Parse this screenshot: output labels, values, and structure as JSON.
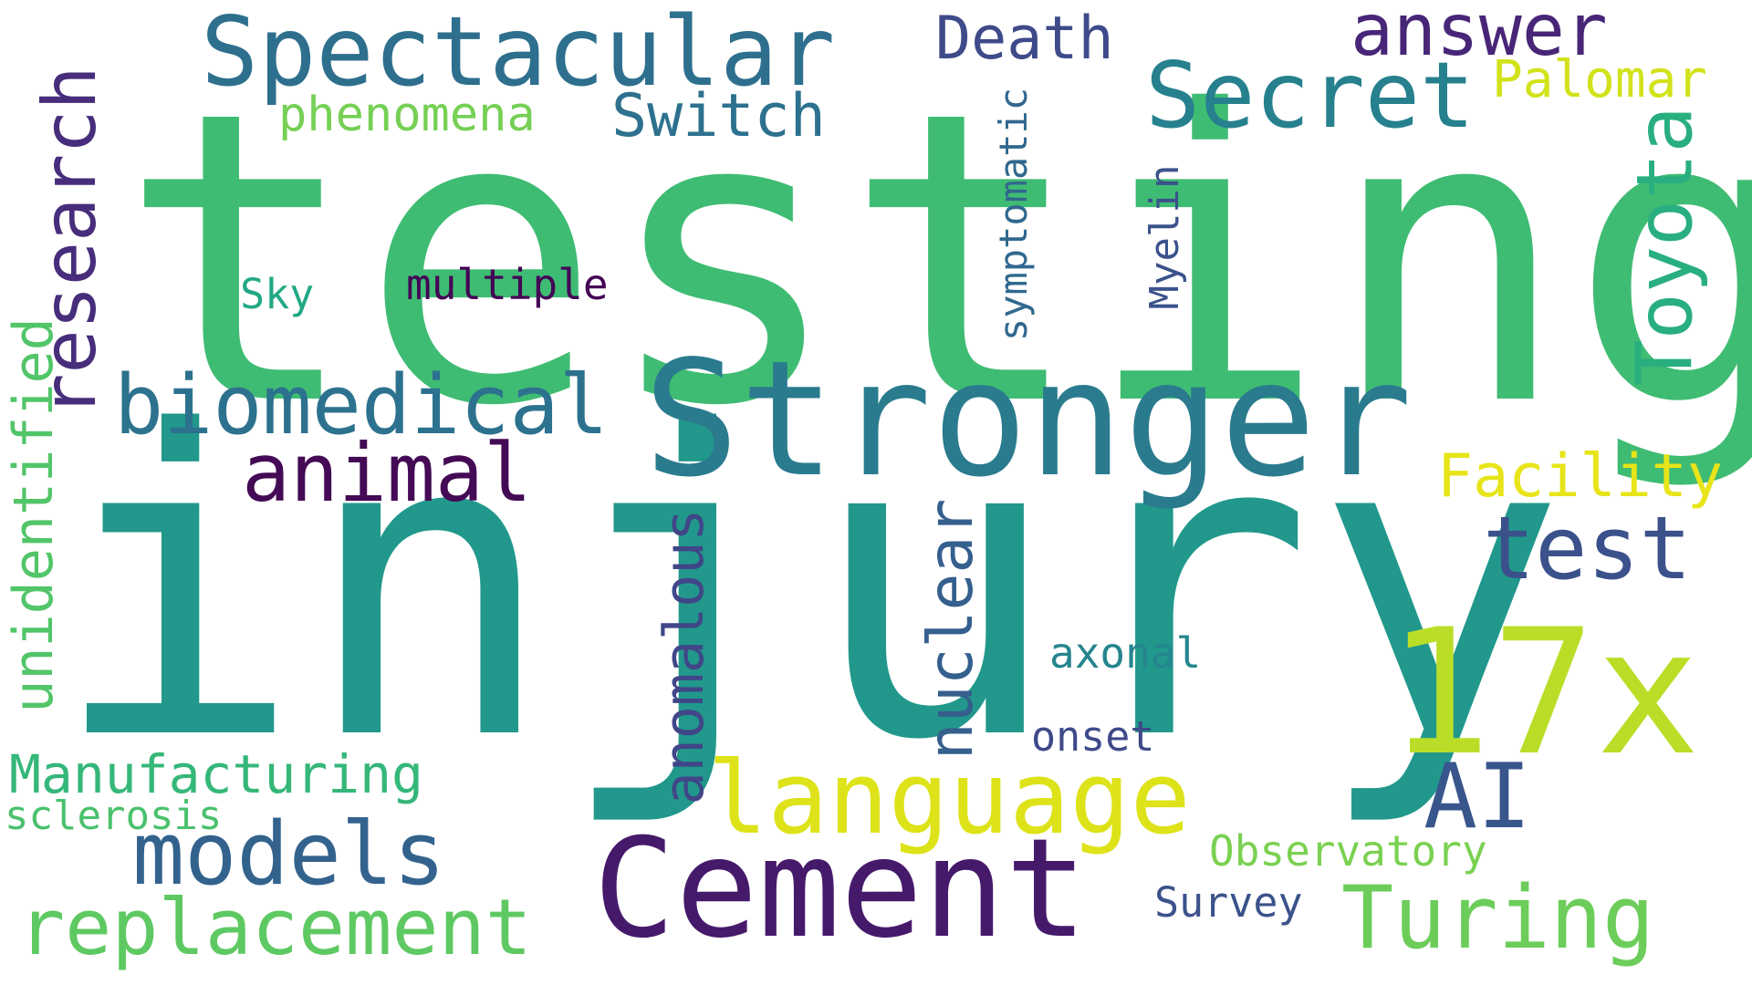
{
  "words": {
    "testing": {
      "text": "testing",
      "color": "#3fbc73"
    },
    "injury": {
      "text": "injury",
      "color": "#21988b"
    },
    "stronger": {
      "text": "Stronger",
      "color": "#2a7b8e"
    },
    "cement": {
      "text": "Cement",
      "color": "#461a6b"
    },
    "seventeen_x": {
      "text": "17x",
      "color": "#bade28"
    },
    "language": {
      "text": "language",
      "color": "#dde318"
    },
    "spectacular": {
      "text": "Spectacular",
      "color": "#2e6f8e"
    },
    "secret": {
      "text": "Secret",
      "color": "#26808e"
    },
    "biomedical": {
      "text": "biomedical",
      "color": "#2c728e"
    },
    "animal": {
      "text": "animal",
      "color": "#440a55"
    },
    "models": {
      "text": "models",
      "color": "#33638d"
    },
    "replacement": {
      "text": "replacement",
      "color": "#5ec962"
    },
    "turing": {
      "text": "Turing",
      "color": "#6ccd5a"
    },
    "test": {
      "text": "test",
      "color": "#3b518b"
    },
    "ai": {
      "text": "AI",
      "color": "#39568c"
    },
    "answer": {
      "text": "answer",
      "color": "#482677"
    },
    "switch": {
      "text": "Switch",
      "color": "#2d718e"
    },
    "phenomena": {
      "text": "phenomena",
      "color": "#75d054"
    },
    "death": {
      "text": "Death",
      "color": "#3e4a89"
    },
    "palomar": {
      "text": "Palomar",
      "color": "#d2e21b"
    },
    "facility": {
      "text": "Facility",
      "color": "#e7e419"
    },
    "manufacturing": {
      "text": "Manufacturing",
      "color": "#35b779"
    },
    "sclerosis": {
      "text": "sclerosis",
      "color": "#4ac16d"
    },
    "observatory": {
      "text": "Observatory",
      "color": "#7ad151"
    },
    "survey": {
      "text": "Survey",
      "color": "#3b528b"
    },
    "axonal": {
      "text": "axonal",
      "color": "#25858e"
    },
    "onset": {
      "text": "onset",
      "color": "#3e4989"
    },
    "multiple": {
      "text": "multiple",
      "color": "#440256"
    },
    "sky": {
      "text": "Sky",
      "color": "#22a884"
    },
    "research": {
      "text": "research",
      "color": "#472d7b"
    },
    "toyota": {
      "text": "Toyota",
      "color": "#29af7f"
    },
    "unidentified": {
      "text": "unidentified",
      "color": "#52c569"
    },
    "anomalous": {
      "text": "anomalous",
      "color": "#404688"
    },
    "nuclear": {
      "text": "nuclear",
      "color": "#355f8d"
    },
    "symptomatic": {
      "text": "symptomatic",
      "color": "#31688e"
    },
    "myelin": {
      "text": "Myelin",
      "color": "#3b528b"
    }
  }
}
